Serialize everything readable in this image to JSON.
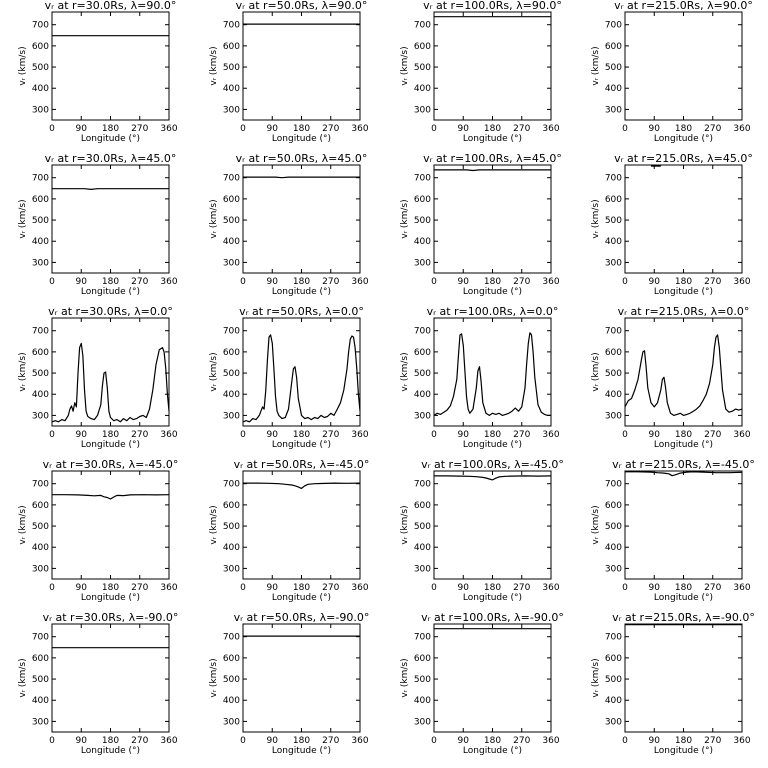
{
  "figure": {
    "xlabel": "Longitude (°)",
    "ylabel": "vᵣ (km/s)",
    "xticks": [
      0,
      90,
      180,
      270,
      360
    ],
    "yticks": [
      300,
      400,
      500,
      600,
      700
    ]
  },
  "chart_data": [
    {
      "type": "line",
      "title": "vᵣ at r=30.0Rs, λ=90.0°",
      "xlim": [
        0,
        360
      ],
      "ylim": [
        250,
        760
      ],
      "x": [
        0,
        360
      ],
      "y": [
        648,
        648
      ]
    },
    {
      "type": "line",
      "title": "vᵣ at r=50.0Rs, λ=90.0°",
      "xlim": [
        0,
        360
      ],
      "ylim": [
        250,
        760
      ],
      "x": [
        0,
        360
      ],
      "y": [
        703,
        703
      ]
    },
    {
      "type": "line",
      "title": "vᵣ at r=100.0Rs, λ=90.0°",
      "xlim": [
        0,
        360
      ],
      "ylim": [
        250,
        760
      ],
      "x": [
        0,
        360
      ],
      "y": [
        738,
        738
      ]
    },
    {
      "type": "line",
      "title": "vᵣ at r=215.0Rs, λ=90.0°",
      "xlim": [
        0,
        360
      ],
      "ylim": [
        250,
        760
      ],
      "x": [],
      "y": []
    },
    {
      "type": "line",
      "title": "vᵣ at r=30.0Rs, λ=45.0°",
      "xlim": [
        0,
        360
      ],
      "ylim": [
        250,
        760
      ],
      "x": [
        0,
        100,
        120,
        140,
        360
      ],
      "y": [
        648,
        648,
        645,
        648,
        648
      ]
    },
    {
      "type": "line",
      "title": "vᵣ at r=50.0Rs, λ=45.0°",
      "xlim": [
        0,
        360
      ],
      "ylim": [
        250,
        760
      ],
      "x": [
        0,
        100,
        120,
        140,
        360
      ],
      "y": [
        703,
        703,
        700,
        703,
        703
      ]
    },
    {
      "type": "line",
      "title": "vᵣ at r=100.0Rs, λ=45.0°",
      "xlim": [
        0,
        360
      ],
      "ylim": [
        250,
        760
      ],
      "x": [
        0,
        100,
        120,
        140,
        360
      ],
      "y": [
        737,
        737,
        734,
        737,
        737
      ]
    },
    {
      "type": "line",
      "title": "vᵣ at r=215.0Rs, λ=45.0°",
      "xlim": [
        0,
        360
      ],
      "ylim": [
        250,
        760
      ],
      "x": [
        80,
        110
      ],
      "y": [
        755,
        755
      ]
    },
    {
      "type": "line",
      "title": "vᵣ at r=30.0Rs, λ=0.0°",
      "xlim": [
        0,
        360
      ],
      "ylim": [
        250,
        760
      ],
      "x": [
        0,
        10,
        20,
        30,
        40,
        50,
        55,
        60,
        65,
        70,
        75,
        80,
        85,
        90,
        95,
        100,
        105,
        110,
        120,
        130,
        140,
        150,
        155,
        160,
        165,
        170,
        175,
        180,
        190,
        200,
        210,
        220,
        230,
        240,
        250,
        260,
        270,
        280,
        290,
        300,
        310,
        320,
        330,
        340,
        345,
        350,
        355,
        360
      ],
      "y": [
        270,
        275,
        270,
        280,
        275,
        300,
        330,
        345,
        320,
        360,
        340,
        500,
        620,
        640,
        580,
        420,
        320,
        295,
        285,
        280,
        300,
        350,
        440,
        500,
        505,
        430,
        320,
        290,
        275,
        280,
        270,
        285,
        275,
        290,
        280,
        285,
        295,
        300,
        290,
        330,
        420,
        540,
        610,
        620,
        600,
        520,
        400,
        320
      ]
    },
    {
      "type": "line",
      "title": "vᵣ at r=50.0Rs, λ=0.0°",
      "xlim": [
        0,
        360
      ],
      "ylim": [
        250,
        760
      ],
      "x": [
        0,
        10,
        20,
        30,
        40,
        50,
        60,
        65,
        70,
        75,
        80,
        85,
        90,
        95,
        100,
        105,
        110,
        120,
        130,
        140,
        150,
        155,
        160,
        165,
        170,
        180,
        190,
        200,
        210,
        220,
        230,
        240,
        250,
        260,
        270,
        280,
        290,
        300,
        310,
        320,
        325,
        330,
        335,
        340,
        345,
        350,
        355,
        360
      ],
      "y": [
        270,
        275,
        270,
        285,
        280,
        300,
        340,
        330,
        420,
        560,
        670,
        680,
        640,
        520,
        390,
        320,
        300,
        285,
        290,
        330,
        460,
        520,
        530,
        480,
        380,
        300,
        285,
        290,
        280,
        290,
        285,
        300,
        290,
        295,
        310,
        300,
        330,
        360,
        420,
        520,
        600,
        660,
        675,
        670,
        620,
        520,
        400,
        320
      ]
    },
    {
      "type": "line",
      "title": "vᵣ at r=100.0Rs, λ=0.0°",
      "xlim": [
        0,
        360
      ],
      "ylim": [
        250,
        760
      ],
      "x": [
        0,
        10,
        20,
        30,
        40,
        50,
        60,
        70,
        75,
        80,
        85,
        90,
        95,
        100,
        105,
        110,
        120,
        130,
        135,
        140,
        145,
        150,
        160,
        170,
        180,
        190,
        200,
        210,
        220,
        230,
        240,
        250,
        260,
        270,
        280,
        285,
        290,
        295,
        300,
        305,
        310,
        320,
        330,
        340,
        350,
        360
      ],
      "y": [
        300,
        310,
        305,
        315,
        325,
        345,
        390,
        470,
        580,
        680,
        685,
        630,
        510,
        390,
        330,
        310,
        330,
        430,
        510,
        530,
        460,
        360,
        310,
        300,
        310,
        305,
        310,
        300,
        305,
        310,
        320,
        335,
        320,
        340,
        430,
        540,
        640,
        690,
        680,
        600,
        480,
        350,
        315,
        305,
        300,
        300
      ]
    },
    {
      "type": "line",
      "title": "vᵣ at r=215.0Rs, λ=0.0°",
      "xlim": [
        0,
        360
      ],
      "ylim": [
        250,
        760
      ],
      "x": [
        0,
        10,
        20,
        30,
        40,
        50,
        55,
        60,
        65,
        70,
        80,
        90,
        100,
        110,
        115,
        120,
        125,
        130,
        140,
        150,
        160,
        170,
        180,
        190,
        200,
        210,
        220,
        230,
        240,
        250,
        260,
        270,
        275,
        280,
        285,
        290,
        300,
        310,
        320,
        330,
        340,
        350,
        360
      ],
      "y": [
        340,
        370,
        380,
        420,
        470,
        560,
        600,
        605,
        530,
        430,
        360,
        340,
        360,
        420,
        470,
        480,
        430,
        360,
        310,
        300,
        305,
        310,
        300,
        305,
        310,
        320,
        330,
        345,
        370,
        400,
        450,
        540,
        620,
        670,
        680,
        620,
        420,
        330,
        315,
        320,
        330,
        325,
        330
      ]
    },
    {
      "type": "line",
      "title": "vᵣ at r=30.0Rs, λ=-45.0°",
      "xlim": [
        0,
        360
      ],
      "ylim": [
        250,
        760
      ],
      "x": [
        0,
        40,
        80,
        110,
        130,
        150,
        160,
        170,
        180,
        190,
        200,
        220,
        240,
        280,
        320,
        360
      ],
      "y": [
        648,
        648,
        647,
        645,
        643,
        645,
        638,
        635,
        628,
        637,
        645,
        644,
        647,
        648,
        647,
        648
      ]
    },
    {
      "type": "line",
      "title": "vᵣ at r=50.0Rs, λ=-45.0°",
      "xlim": [
        0,
        360
      ],
      "ylim": [
        250,
        760
      ],
      "x": [
        0,
        40,
        80,
        110,
        130,
        150,
        160,
        170,
        180,
        190,
        200,
        220,
        240,
        280,
        320,
        360
      ],
      "y": [
        703,
        703,
        702,
        700,
        697,
        694,
        690,
        685,
        678,
        690,
        697,
        700,
        701,
        703,
        702,
        703
      ]
    },
    {
      "type": "line",
      "title": "vᵣ at r=100.0Rs, λ=-45.0°",
      "xlim": [
        0,
        360
      ],
      "ylim": [
        250,
        760
      ],
      "x": [
        0,
        40,
        80,
        110,
        130,
        150,
        160,
        170,
        180,
        190,
        200,
        220,
        240,
        280,
        320,
        360
      ],
      "y": [
        737,
        737,
        736,
        735,
        733,
        730,
        727,
        722,
        718,
        726,
        732,
        735,
        736,
        737,
        736,
        737
      ]
    },
    {
      "type": "line",
      "title": "vᵣ at r=215.0Rs, λ=-45.0°",
      "xlim": [
        0,
        360
      ],
      "ylim": [
        250,
        760
      ],
      "x": [
        0,
        40,
        80,
        100,
        120,
        135,
        145,
        155,
        170,
        190,
        210,
        240,
        280,
        320,
        360
      ],
      "y": [
        756,
        756,
        755,
        752,
        750,
        747,
        738,
        742,
        750,
        755,
        756,
        755,
        752,
        752,
        754
      ]
    },
    {
      "type": "line",
      "title": "vᵣ at r=30.0Rs, λ=-90.0°",
      "xlim": [
        0,
        360
      ],
      "ylim": [
        250,
        760
      ],
      "x": [
        0,
        360
      ],
      "y": [
        648,
        648
      ]
    },
    {
      "type": "line",
      "title": "vᵣ at r=50.0Rs, λ=-90.0°",
      "xlim": [
        0,
        360
      ],
      "ylim": [
        250,
        760
      ],
      "x": [
        0,
        360
      ],
      "y": [
        703,
        703
      ]
    },
    {
      "type": "line",
      "title": "vᵣ at r=100.0Rs, λ=-90.0°",
      "xlim": [
        0,
        360
      ],
      "ylim": [
        250,
        760
      ],
      "x": [
        0,
        360
      ],
      "y": [
        738,
        738
      ]
    },
    {
      "type": "line",
      "title": "vᵣ at r=215.0Rs, λ=-90.0°",
      "xlim": [
        0,
        360
      ],
      "ylim": [
        250,
        760
      ],
      "x": [
        0,
        360
      ],
      "y": [
        757,
        757
      ]
    }
  ]
}
